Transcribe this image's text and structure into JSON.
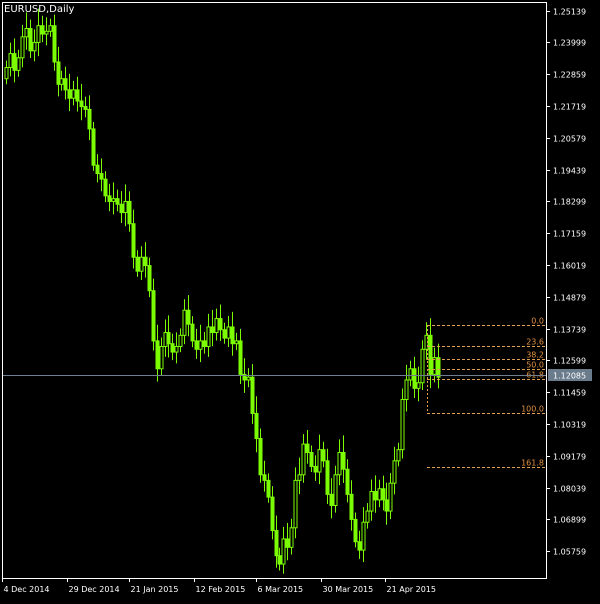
{
  "window": {
    "symbol_label": "EURUSD,Daily"
  },
  "colors": {
    "background": "#000000",
    "candle": "#7CFC00",
    "candle_body": "#000000",
    "axis": "#FFFFFF",
    "grid_text": "#FFFFFF",
    "fib_level": "#E0A050",
    "fib_text": "#E09040",
    "bid_line": "#708090",
    "price_tag_bg": "#6A7B8C",
    "price_tag_text": "#FFFFFF"
  },
  "chart_data": {
    "type": "candlestick",
    "title": "EURUSD,Daily",
    "ylim": [
      1.048,
      1.2545
    ],
    "y_ticks": [
      "1.25139",
      "1.23999",
      "1.22859",
      "1.21719",
      "1.20579",
      "1.19439",
      "1.18299",
      "1.17159",
      "1.16019",
      "1.14879",
      "1.13739",
      "1.12599",
      "1.11459",
      "1.10319",
      "1.09179",
      "1.08039",
      "1.06899",
      "1.05759"
    ],
    "x_ticks": [
      "4 Dec 2014",
      "29 Dec 2014",
      "21 Jan 2015",
      "12 Feb 2015",
      "6 Mar 2015",
      "30 Mar 2015",
      "21 Apr 2015"
    ],
    "current_price": 1.12085,
    "current_price_label": "1.12085",
    "fibonacci": {
      "high": 1.1387,
      "low": 1.1072,
      "levels": [
        {
          "ratio": 0.0,
          "label": "0.0"
        },
        {
          "ratio": 0.236,
          "label": "23.6"
        },
        {
          "ratio": 0.382,
          "label": "38.2"
        },
        {
          "ratio": 0.5,
          "label": "50.0"
        },
        {
          "ratio": 0.618,
          "label": "61.8"
        },
        {
          "ratio": 1.0,
          "label": "100.0"
        },
        {
          "ratio": 1.618,
          "label": "161.8"
        }
      ]
    },
    "closes": [
      1.231,
      1.236,
      1.23,
      1.2345,
      1.242,
      1.245,
      1.237,
      1.24,
      1.246,
      1.243,
      1.244,
      1.246,
      1.233,
      1.225,
      1.227,
      1.223,
      1.22,
      1.223,
      1.219,
      1.217,
      1.216,
      1.209,
      1.196,
      1.193,
      1.191,
      1.185,
      1.183,
      1.184,
      1.182,
      1.179,
      1.183,
      1.175,
      1.163,
      1.158,
      1.163,
      1.16,
      1.151,
      1.133,
      1.123,
      1.131,
      1.136,
      1.132,
      1.129,
      1.131,
      1.135,
      1.144,
      1.139,
      1.133,
      1.13,
      1.133,
      1.131,
      1.138,
      1.136,
      1.141,
      1.137,
      1.134,
      1.138,
      1.132,
      1.133,
      1.121,
      1.119,
      1.12,
      1.107,
      1.098,
      1.085,
      1.083,
      1.077,
      1.065,
      1.056,
      1.053,
      1.062,
      1.059,
      1.066,
      1.083,
      1.085,
      1.096,
      1.093,
      1.088,
      1.086,
      1.094,
      1.09,
      1.078,
      1.074,
      1.085,
      1.093,
      1.087,
      1.078,
      1.069,
      1.061,
      1.058,
      1.068,
      1.072,
      1.079,
      1.076,
      1.08,
      1.076,
      1.072,
      1.082,
      1.09,
      1.094,
      1.112,
      1.119,
      1.123,
      1.116,
      1.118,
      1.13,
      1.135,
      1.121,
      1.127,
      1.12
    ]
  }
}
